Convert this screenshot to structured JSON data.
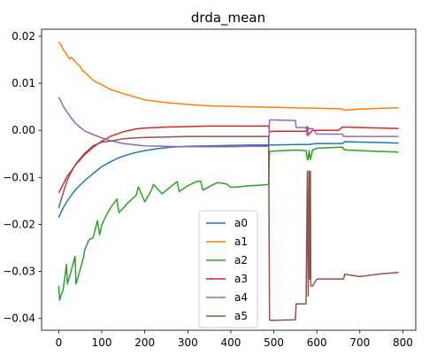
{
  "chart_data": {
    "type": "line",
    "title": "drda_mean",
    "xlabel": "",
    "ylabel": "",
    "xlim": [
      -40,
      830
    ],
    "ylim": [
      -0.0425,
      0.0215
    ],
    "xticks": [
      0,
      100,
      200,
      300,
      400,
      500,
      600,
      700,
      800
    ],
    "yticks": [
      0.02,
      0.01,
      0.0,
      -0.01,
      -0.02,
      -0.03,
      -0.04
    ],
    "ytick_labels": [
      "0.02",
      "0.01",
      "0.00",
      "−0.01",
      "−0.02",
      "−0.03",
      "−0.04"
    ],
    "grid": false,
    "legend_position": "lower center",
    "series": [
      {
        "name": "a0",
        "color": "#1f77b4",
        "x": [
          0,
          10,
          20,
          30,
          40,
          60,
          80,
          100,
          120,
          140,
          160,
          180,
          200,
          230,
          260,
          300,
          350,
          400,
          450,
          485,
          490,
          500,
          550,
          575,
          580,
          590,
          600,
          650,
          660,
          665,
          700,
          750,
          790
        ],
        "y": [
          -0.0185,
          -0.0165,
          -0.015,
          -0.0137,
          -0.0125,
          -0.0107,
          -0.0092,
          -0.0077,
          -0.0067,
          -0.0058,
          -0.0052,
          -0.0047,
          -0.0043,
          -0.0039,
          -0.0036,
          -0.0034,
          -0.0033,
          -0.0032,
          -0.0031,
          -0.0031,
          -0.0031,
          -0.0031,
          -0.003,
          -0.003,
          -0.003,
          -0.0029,
          -0.0028,
          -0.0028,
          -0.0028,
          -0.0024,
          -0.0025,
          -0.0026,
          -0.0027
        ]
      },
      {
        "name": "a1",
        "color": "#ff7f0e",
        "x": [
          0,
          5,
          10,
          15,
          20,
          25,
          30,
          40,
          50,
          55,
          60,
          70,
          80,
          100,
          120,
          150,
          180,
          200,
          250,
          300,
          350,
          400,
          450,
          500,
          550,
          580,
          585,
          600,
          650,
          660,
          665,
          700,
          750,
          790
        ],
        "y": [
          0.0188,
          0.0182,
          0.0172,
          0.0166,
          0.0159,
          0.0152,
          0.0155,
          0.0144,
          0.0135,
          0.0127,
          0.0124,
          0.0115,
          0.0106,
          0.0097,
          0.0087,
          0.0078,
          0.007,
          0.0065,
          0.0059,
          0.0055,
          0.0052,
          0.0051,
          0.005,
          0.0049,
          0.0048,
          0.0047,
          0.0048,
          0.0047,
          0.0046,
          0.0045,
          0.0043,
          0.0045,
          0.0047,
          0.0048
        ]
      },
      {
        "name": "a2",
        "color": "#2ca02c",
        "x": [
          0,
          2,
          5,
          10,
          18,
          20,
          30,
          38,
          40,
          50,
          58,
          60,
          70,
          80,
          90,
          95,
          100,
          110,
          120,
          135,
          140,
          160,
          180,
          185,
          200,
          215,
          220,
          240,
          260,
          275,
          280,
          300,
          320,
          330,
          335,
          360,
          370,
          390,
          400,
          420,
          440,
          460,
          480,
          488,
          490,
          500,
          550,
          575,
          578,
          580,
          582,
          585,
          590,
          600,
          650,
          660,
          662,
          670,
          700,
          750,
          790
        ],
        "y": [
          -0.0331,
          -0.0361,
          -0.0351,
          -0.034,
          -0.0285,
          -0.0327,
          -0.0295,
          -0.0268,
          -0.0327,
          -0.0295,
          -0.0268,
          -0.0255,
          -0.0233,
          -0.0228,
          -0.0192,
          -0.0222,
          -0.0201,
          -0.0182,
          -0.0165,
          -0.0146,
          -0.0175,
          -0.0155,
          -0.0138,
          -0.012,
          -0.0152,
          -0.0128,
          -0.0115,
          -0.0135,
          -0.012,
          -0.0109,
          -0.013,
          -0.0118,
          -0.0109,
          -0.0108,
          -0.0127,
          -0.0115,
          -0.0111,
          -0.0114,
          -0.0121,
          -0.012,
          -0.0118,
          -0.0117,
          -0.0116,
          -0.0115,
          -0.0045,
          -0.0044,
          -0.0042,
          -0.0043,
          -0.0062,
          -0.0062,
          -0.0043,
          -0.0062,
          -0.0042,
          -0.0038,
          -0.0036,
          -0.0036,
          -0.004,
          -0.0042,
          -0.0043,
          -0.0045,
          -0.0046
        ]
      },
      {
        "name": "a3",
        "color": "#d62728",
        "x": [
          0,
          10,
          20,
          30,
          40,
          50,
          60,
          80,
          100,
          120,
          150,
          180,
          200,
          250,
          300,
          350,
          400,
          450,
          488,
          490,
          500,
          550,
          575,
          578,
          580,
          590,
          600,
          650,
          660,
          665,
          700,
          750,
          790
        ],
        "y": [
          -0.0133,
          -0.0115,
          -0.0097,
          -0.0085,
          -0.0072,
          -0.0062,
          -0.0052,
          -0.0036,
          -0.0023,
          -0.0013,
          -0.0003,
          0.0003,
          0.0005,
          0.0007,
          0.0008,
          0.0009,
          0.0009,
          0.0009,
          0.0009,
          -0.0003,
          -0.0002,
          -0.0002,
          -0.0002,
          0.0008,
          -0.001,
          0.0,
          0.0,
          0.0,
          0.0007,
          0.0007,
          0.0006,
          0.0005,
          0.0004
        ]
      },
      {
        "name": "a4",
        "color": "#9467bd",
        "x": [
          0,
          5,
          10,
          15,
          20,
          30,
          40,
          50,
          60,
          80,
          100,
          120,
          150,
          180,
          200,
          250,
          300,
          350,
          400,
          450,
          488,
          490,
          500,
          550,
          552,
          575,
          578,
          580,
          582,
          590,
          600,
          650,
          660,
          662,
          700,
          750,
          790
        ],
        "y": [
          0.007,
          0.0062,
          0.0052,
          0.0045,
          0.0038,
          0.0025,
          0.0014,
          0.0006,
          -0.0001,
          -0.0009,
          -0.0016,
          -0.0022,
          -0.0028,
          -0.0031,
          -0.0033,
          -0.0034,
          -0.0035,
          -0.0035,
          -0.0035,
          -0.0034,
          -0.0034,
          0.0022,
          0.0022,
          0.0021,
          0.0006,
          0.0006,
          -0.0012,
          0.0006,
          0.0003,
          0.0004,
          -0.0008,
          -0.0008,
          -0.0008,
          -0.0013,
          -0.0013,
          -0.0013,
          -0.0013
        ]
      },
      {
        "name": "a5",
        "color": "#8c564b",
        "x": [
          0,
          10,
          20,
          30,
          40,
          60,
          80,
          100,
          120,
          150,
          180,
          200,
          250,
          300,
          350,
          400,
          450,
          485,
          488,
          490,
          500,
          550,
          552,
          575,
          578,
          580,
          582,
          583,
          584,
          585,
          586,
          590,
          600,
          620,
          650,
          660,
          662,
          665,
          700,
          750,
          790
        ],
        "y": [
          -0.0165,
          -0.0134,
          -0.0105,
          -0.0087,
          -0.0071,
          -0.0049,
          -0.0033,
          -0.0025,
          -0.0023,
          -0.0018,
          -0.0016,
          -0.0015,
          -0.0014,
          -0.0013,
          -0.0013,
          -0.0013,
          -0.0013,
          -0.0013,
          -0.0013,
          -0.0404,
          -0.0404,
          -0.0403,
          -0.0369,
          -0.0369,
          -0.0087,
          -0.0352,
          -0.0087,
          -0.0316,
          -0.0087,
          -0.0087,
          -0.0331,
          -0.0331,
          -0.0316,
          -0.0316,
          -0.0316,
          -0.0316,
          -0.0316,
          -0.0306,
          -0.0311,
          -0.0305,
          -0.0302
        ]
      }
    ]
  }
}
